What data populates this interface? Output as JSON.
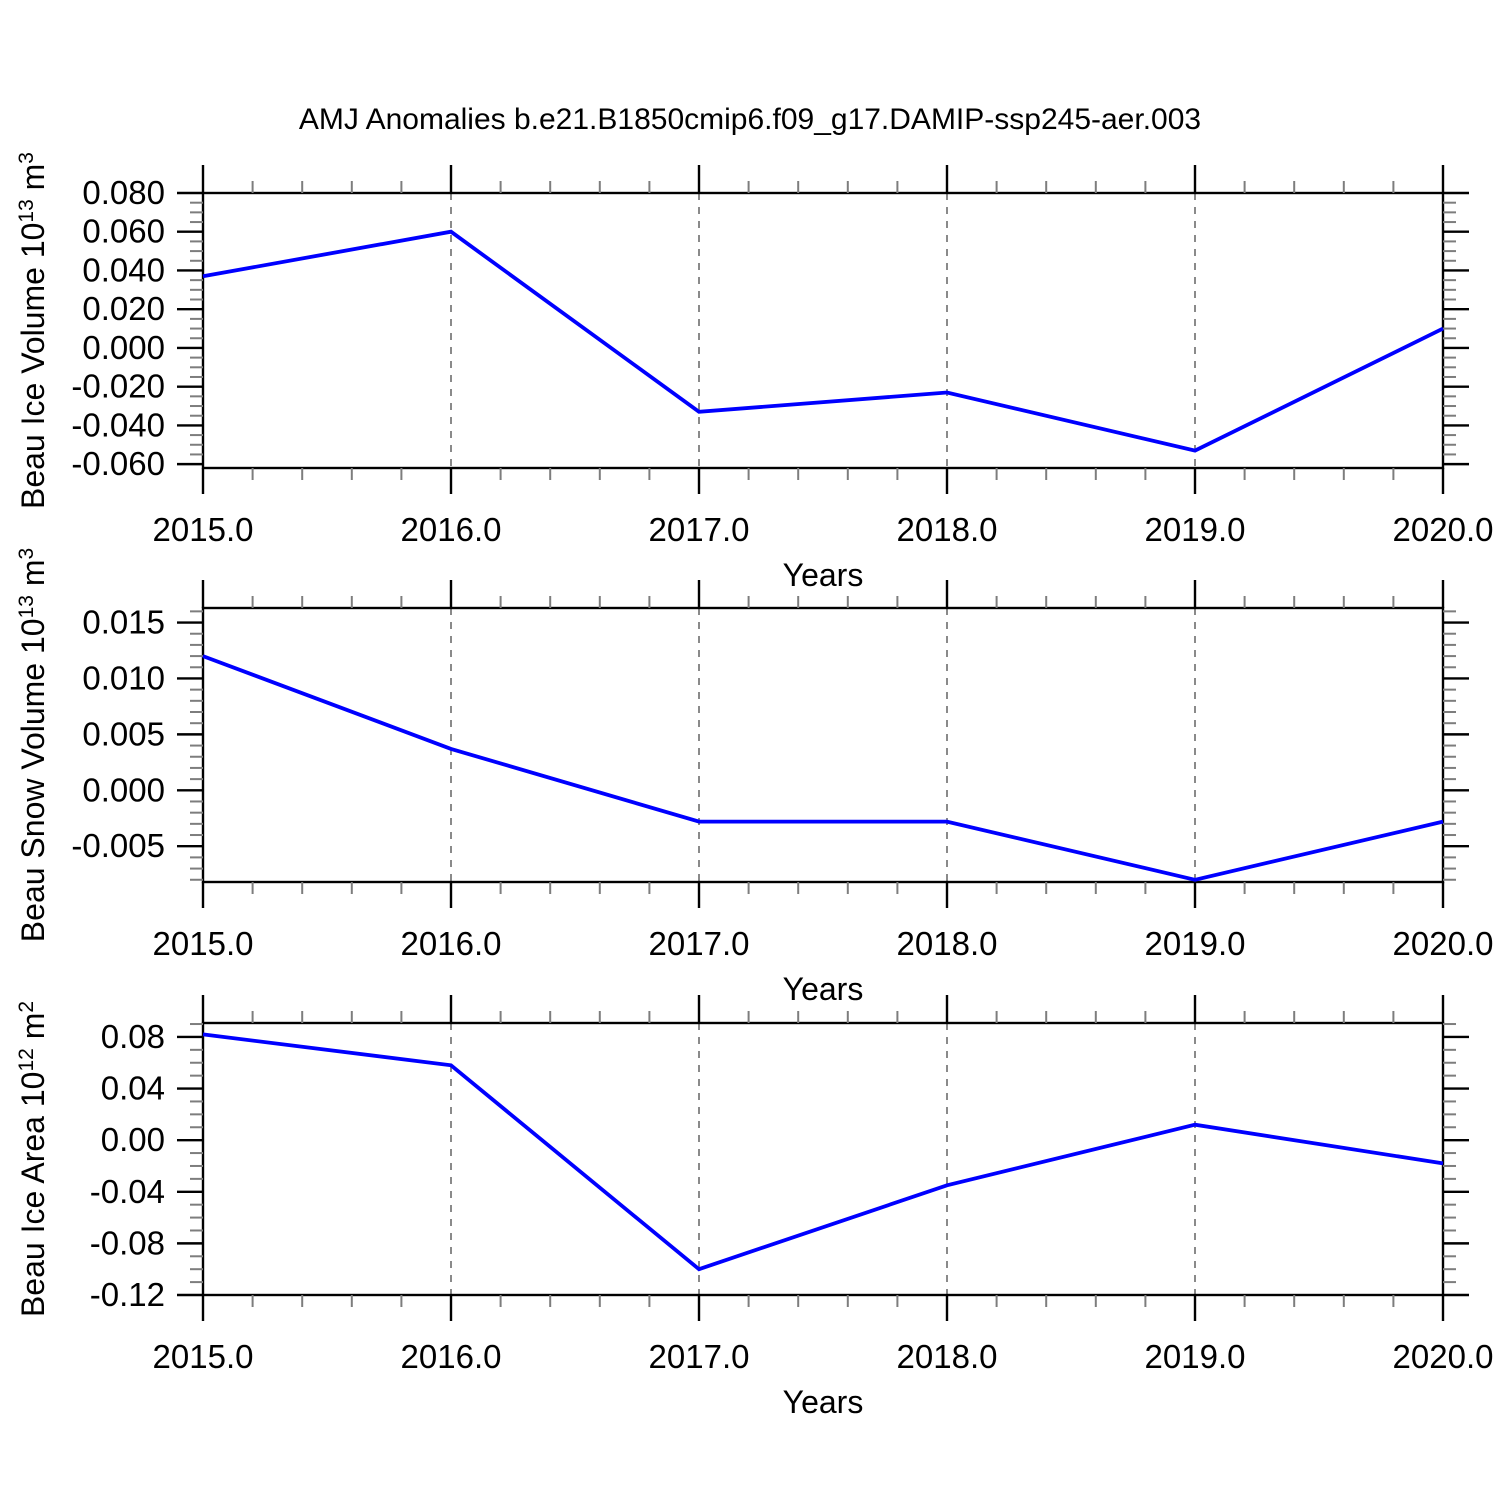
{
  "figure": {
    "title": "AMJ Anomalies b.e21.B1850cmip6.f09_g17.DAMIP-ssp245-aer.003",
    "background": "#ffffff"
  },
  "colors": {
    "line": "#0000ff",
    "frame": "#000000",
    "major_tick": "#000000",
    "minor_tick": "#7d7d7d",
    "grid": "#8a8a8a",
    "text": "#000000"
  },
  "chart_data": [
    {
      "type": "line",
      "ylabel": "Beau Ice Volume 10^13 m^3",
      "ylabel_parts": [
        {
          "t": "Beau Ice Volume 10"
        },
        {
          "t": "13",
          "sup": true
        },
        {
          "t": " m"
        },
        {
          "t": "3",
          "sup": true
        }
      ],
      "xlabel": "Years",
      "x": [
        2015.0,
        2016.0,
        2017.0,
        2018.0,
        2019.0,
        2020.0
      ],
      "y": [
        0.037,
        0.06,
        -0.033,
        -0.023,
        -0.053,
        0.01
      ],
      "xlim": [
        2015.0,
        2020.0
      ],
      "ylim": [
        -0.062,
        0.08
      ],
      "x_tick_values": [
        2015.0,
        2016.0,
        2017.0,
        2018.0,
        2019.0,
        2020.0
      ],
      "x_tick_labels": [
        "2015.0",
        "2016.0",
        "2017.0",
        "2018.0",
        "2019.0",
        "2020.0"
      ],
      "y_tick_values": [
        0.08,
        0.06,
        0.04,
        0.02,
        0.0,
        -0.02,
        -0.04,
        -0.06
      ],
      "y_tick_labels": [
        "0.080",
        "0.060",
        "0.040",
        "0.020",
        "0.000",
        "-0.020",
        "-0.040",
        "-0.060"
      ],
      "x_minor_step": 0.2,
      "y_minor_step": 0.005,
      "grid_x_values": [
        2016.0,
        2017.0,
        2018.0,
        2019.0
      ],
      "grid_style": "dashed",
      "legend": "none"
    },
    {
      "type": "line",
      "ylabel": "Beau Snow Volume 10^13 m^3",
      "ylabel_parts": [
        {
          "t": "Beau Snow Volume 10"
        },
        {
          "t": "13",
          "sup": true
        },
        {
          "t": " m"
        },
        {
          "t": "3",
          "sup": true
        }
      ],
      "xlabel": "Years",
      "x": [
        2015.0,
        2016.0,
        2017.0,
        2018.0,
        2019.0,
        2020.0
      ],
      "y": [
        0.012,
        0.0037,
        -0.0028,
        -0.0028,
        -0.008,
        -0.0028
      ],
      "xlim": [
        2015.0,
        2020.0
      ],
      "ylim": [
        -0.0082,
        0.0163
      ],
      "x_tick_values": [
        2015.0,
        2016.0,
        2017.0,
        2018.0,
        2019.0,
        2020.0
      ],
      "x_tick_labels": [
        "2015.0",
        "2016.0",
        "2017.0",
        "2018.0",
        "2019.0",
        "2020.0"
      ],
      "y_tick_values": [
        0.015,
        0.01,
        0.005,
        0.0,
        -0.005
      ],
      "y_tick_labels": [
        "0.015",
        "0.010",
        "0.005",
        "0.000",
        "-0.005"
      ],
      "x_minor_step": 0.2,
      "y_minor_step": 0.001,
      "grid_x_values": [
        2016.0,
        2017.0,
        2018.0,
        2019.0
      ],
      "grid_style": "dashed",
      "legend": "none"
    },
    {
      "type": "line",
      "ylabel": "Beau Ice Area 10^12 m^2",
      "ylabel_parts": [
        {
          "t": "Beau Ice Area 10"
        },
        {
          "t": "12",
          "sup": true
        },
        {
          "t": " m"
        },
        {
          "t": "2",
          "sup": true
        }
      ],
      "xlabel": "Years",
      "x": [
        2015.0,
        2016.0,
        2017.0,
        2018.0,
        2019.0,
        2020.0
      ],
      "y": [
        0.082,
        0.058,
        -0.1,
        -0.035,
        0.012,
        -0.018
      ],
      "xlim": [
        2015.0,
        2020.0
      ],
      "ylim": [
        -0.12,
        0.0908
      ],
      "x_tick_values": [
        2015.0,
        2016.0,
        2017.0,
        2018.0,
        2019.0,
        2020.0
      ],
      "x_tick_labels": [
        "2015.0",
        "2016.0",
        "2017.0",
        "2018.0",
        "2019.0",
        "2020.0"
      ],
      "y_tick_values": [
        0.08,
        0.04,
        0.0,
        -0.04,
        -0.08,
        -0.12
      ],
      "y_tick_labels": [
        "0.08",
        "0.04",
        "0.00",
        "-0.04",
        "-0.08",
        "-0.12"
      ],
      "x_minor_step": 0.2,
      "y_minor_step": 0.01,
      "grid_x_values": [
        2016.0,
        2017.0,
        2018.0,
        2019.0
      ],
      "grid_style": "dashed",
      "legend": "none"
    }
  ]
}
